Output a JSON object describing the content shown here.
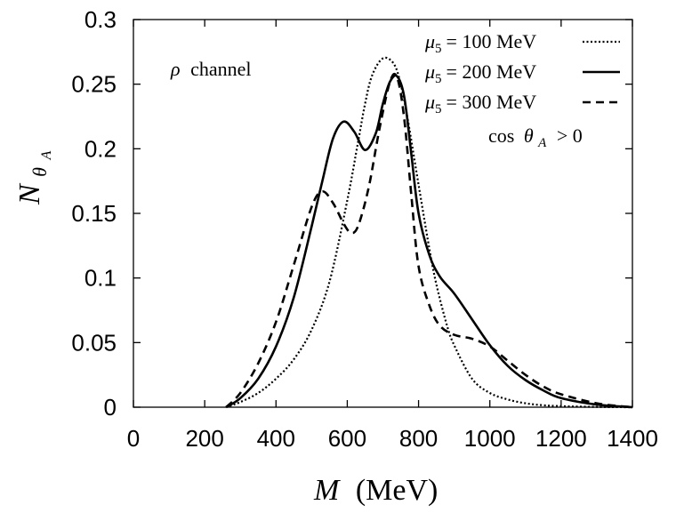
{
  "chart_data": {
    "type": "line",
    "title": "",
    "xlabel_symbol": "M",
    "xlabel_unit": "(MeV)",
    "ylabel_symbol": "N",
    "ylabel_subscript": "θ",
    "ylabel_subsubscript": "A",
    "xlim": [
      0,
      1400
    ],
    "ylim": [
      0,
      0.3
    ],
    "xticks": [
      0,
      200,
      400,
      600,
      800,
      1000,
      1200,
      1400
    ],
    "xtick_labels": [
      "0",
      "200",
      "400",
      "600",
      "800",
      "1000",
      "1200",
      "1400"
    ],
    "yticks": [
      0,
      0.05,
      0.1,
      0.15,
      0.2,
      0.25,
      0.3
    ],
    "ytick_labels": [
      "0",
      "0.05",
      "0.1",
      "0.15",
      "0.2",
      "0.25",
      "0.3"
    ],
    "grid": false,
    "legend_position": "top-right",
    "annotation_left": {
      "symbol": "ρ",
      "text": "channel"
    },
    "annotation_right": {
      "prefix": "cos",
      "symbol": "θ",
      "sub": "A",
      "suffix": "> 0"
    },
    "series": [
      {
        "name": "μ5 = 100 MeV",
        "label_symbol": "μ",
        "label_sub": "5",
        "label_rest": "= 100 MeV",
        "style": "dotted",
        "x": [
          260,
          300,
          350,
          400,
          450,
          500,
          550,
          600,
          630,
          650,
          670,
          700,
          730,
          750,
          770,
          800,
          830,
          850,
          880,
          900,
          950,
          1000,
          1050,
          1100,
          1150,
          1200,
          1300,
          1400
        ],
        "y": [
          0,
          0.004,
          0.011,
          0.022,
          0.037,
          0.06,
          0.097,
          0.16,
          0.205,
          0.235,
          0.257,
          0.27,
          0.266,
          0.25,
          0.222,
          0.172,
          0.123,
          0.095,
          0.063,
          0.048,
          0.022,
          0.011,
          0.006,
          0.003,
          0.0015,
          0.0008,
          0.0002,
          0
        ]
      },
      {
        "name": "μ5 = 200 MeV",
        "label_symbol": "μ",
        "label_sub": "5",
        "label_rest": "= 200 MeV",
        "style": "solid",
        "x": [
          260,
          300,
          350,
          400,
          450,
          500,
          530,
          560,
          590,
          620,
          650,
          680,
          700,
          720,
          740,
          760,
          780,
          800,
          830,
          860,
          900,
          950,
          1000,
          1050,
          1100,
          1150,
          1200,
          1300,
          1400
        ],
        "y": [
          0,
          0.007,
          0.022,
          0.047,
          0.085,
          0.14,
          0.175,
          0.208,
          0.221,
          0.213,
          0.199,
          0.212,
          0.235,
          0.252,
          0.256,
          0.24,
          0.195,
          0.15,
          0.118,
          0.101,
          0.088,
          0.068,
          0.048,
          0.032,
          0.021,
          0.013,
          0.007,
          0.002,
          0
        ]
      },
      {
        "name": "μ5 = 300 MeV",
        "label_symbol": "μ",
        "label_sub": "5",
        "label_rest": "= 300 MeV",
        "style": "dashed",
        "x": [
          260,
          300,
          350,
          400,
          450,
          500,
          530,
          560,
          590,
          610,
          630,
          660,
          690,
          720,
          740,
          760,
          780,
          800,
          830,
          860,
          900,
          950,
          1000,
          1050,
          1100,
          1150,
          1200,
          1300,
          1400
        ],
        "y": [
          0,
          0.011,
          0.034,
          0.066,
          0.11,
          0.155,
          0.167,
          0.158,
          0.142,
          0.135,
          0.14,
          0.17,
          0.215,
          0.252,
          0.255,
          0.223,
          0.163,
          0.109,
          0.079,
          0.063,
          0.056,
          0.053,
          0.047,
          0.036,
          0.025,
          0.016,
          0.01,
          0.003,
          0
        ]
      }
    ]
  }
}
